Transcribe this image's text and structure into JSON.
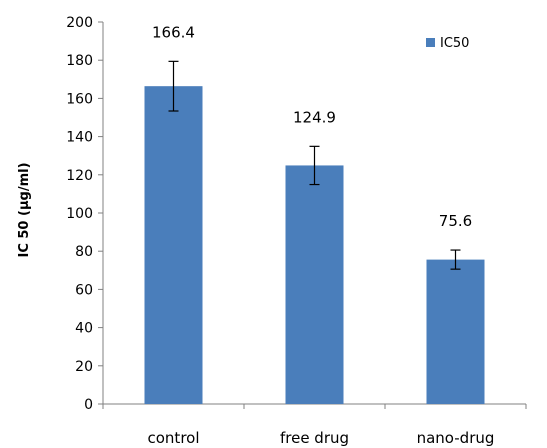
{
  "chart_data": {
    "type": "bar",
    "categories": [
      "control",
      "free drug",
      "nano-drug"
    ],
    "series": [
      {
        "name": "IC50",
        "values": [
          166.4,
          124.9,
          75.6
        ],
        "errors": [
          13,
          10,
          5
        ],
        "color": "#4a7ebb"
      }
    ],
    "data_labels": [
      "166.4",
      "124.9",
      "75.6"
    ],
    "ylabel": "IC 50 (µg/ml)",
    "xlabel": "",
    "ylim": [
      0,
      200
    ],
    "yticks": [
      0,
      20,
      40,
      60,
      80,
      100,
      120,
      140,
      160,
      180,
      200
    ],
    "grid": false,
    "legend_position": "top-right"
  }
}
